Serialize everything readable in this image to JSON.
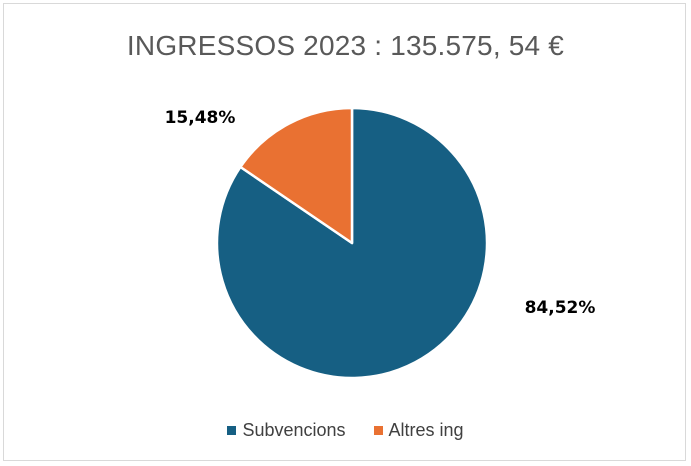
{
  "chart_data": {
    "type": "pie",
    "title": "INGRESSOS 2023 : 135.575, 54 €",
    "slices": [
      {
        "name": "Subvencions",
        "value": 84.52,
        "label": "84,52%",
        "color": "#165F83"
      },
      {
        "name": "Altres ing",
        "value": 15.48,
        "label": "15,48%",
        "color": "#E97132"
      }
    ],
    "legend_position": "bottom"
  }
}
